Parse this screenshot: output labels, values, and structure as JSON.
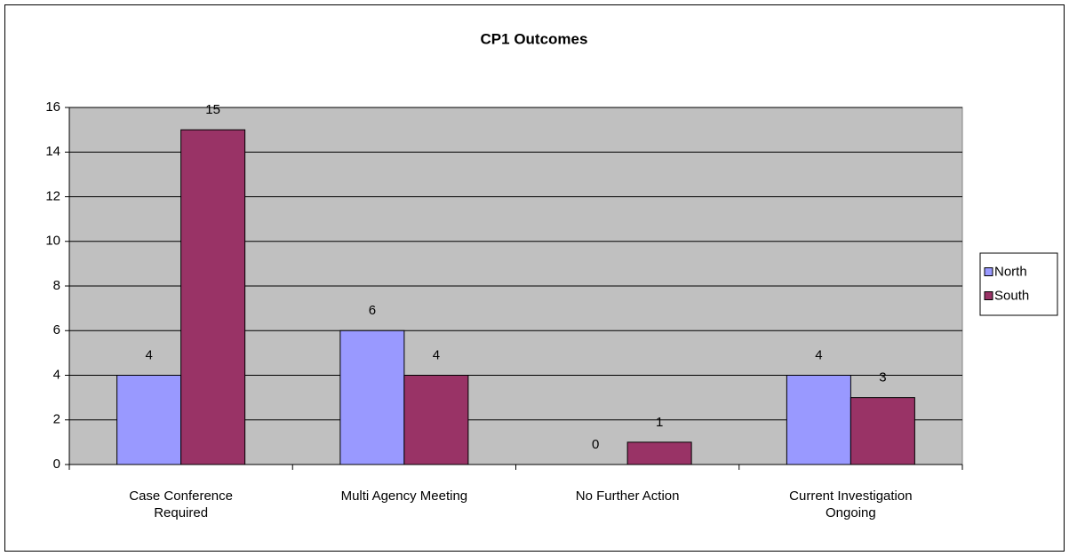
{
  "chart_data": {
    "type": "bar",
    "title": "CP1 Outcomes",
    "categories": [
      "Case Conference Required",
      "Multi Agency Meeting",
      "No Further Action",
      "Current Investigation Ongoing"
    ],
    "series": [
      {
        "name": "North",
        "color": "#9999ff",
        "values": [
          4,
          6,
          0,
          4
        ]
      },
      {
        "name": "South",
        "color": "#993366",
        "values": [
          15,
          4,
          1,
          3
        ]
      }
    ],
    "ylim": [
      0,
      16
    ],
    "yticks": [
      0,
      2,
      4,
      6,
      8,
      10,
      12,
      14,
      16
    ],
    "grid": true,
    "legend": "right",
    "plot_background": "#c0c0c0"
  }
}
